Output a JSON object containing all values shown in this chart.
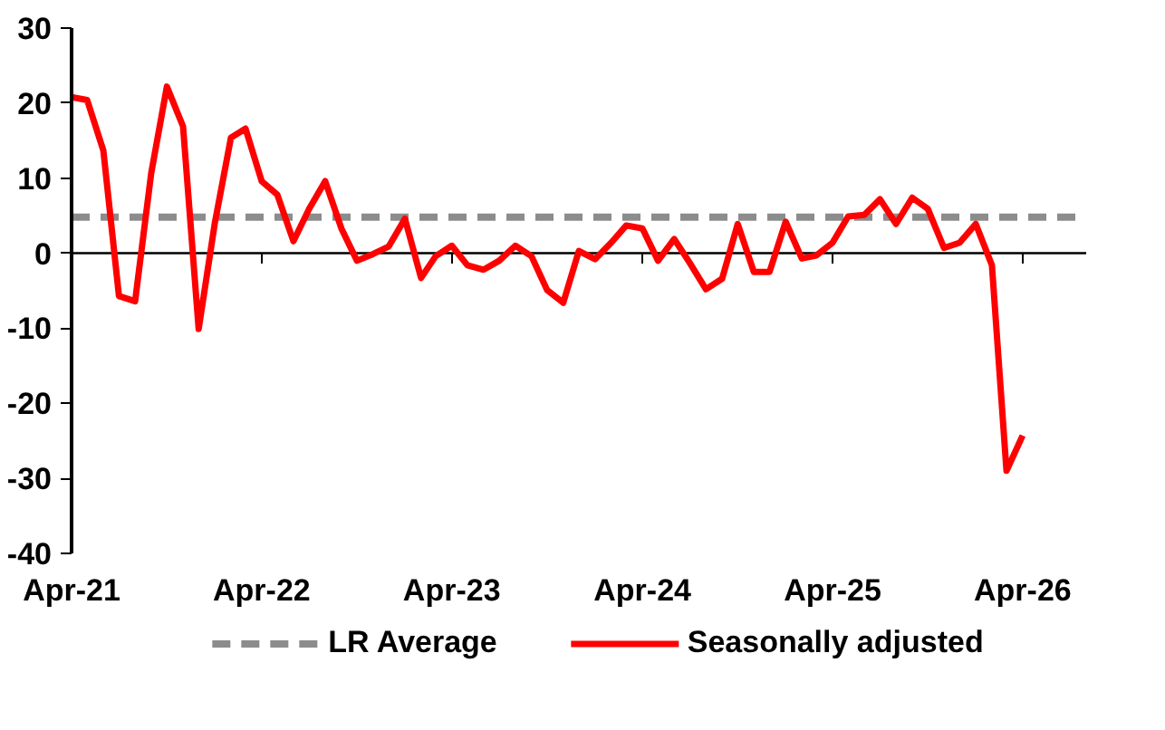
{
  "chart_data": {
    "type": "line",
    "x": [
      "2021-04",
      "2021-05",
      "2021-06",
      "2021-07",
      "2021-08",
      "2021-09",
      "2021-10",
      "2021-11",
      "2021-12",
      "2022-01",
      "2022-02",
      "2022-03",
      "2022-04",
      "2022-05",
      "2022-06",
      "2022-07",
      "2022-08",
      "2022-09",
      "2022-10",
      "2022-11",
      "2022-12",
      "2023-01",
      "2023-02",
      "2023-03",
      "2023-04",
      "2023-05",
      "2023-06",
      "2023-07",
      "2023-08",
      "2023-09",
      "2023-10",
      "2023-11",
      "2023-12",
      "2024-01",
      "2024-02",
      "2024-03",
      "2024-04",
      "2024-05",
      "2024-06",
      "2024-07",
      "2024-08",
      "2024-09",
      "2024-10",
      "2024-11",
      "2024-12",
      "2025-01",
      "2025-02",
      "2025-03",
      "2025-04",
      "2025-05",
      "2025-06",
      "2025-07",
      "2025-08",
      "2025-09",
      "2025-10",
      "2025-11",
      "2025-12",
      "2026-01",
      "2026-02",
      "2026-03",
      "2026-04"
    ],
    "series": [
      {
        "name": "Seasonally adjusted",
        "color": "#ff0000",
        "values": [
          20.8,
          20.4,
          13.7,
          -5.7,
          -6.4,
          10.7,
          22.2,
          16.9,
          -10.1,
          4,
          15.4,
          16.6,
          9.6,
          7.8,
          1.6,
          5.9,
          9.6,
          3.3,
          -1.0,
          -0.1,
          0.9,
          4.6,
          -3.3,
          -0.4,
          1.0,
          -1.6,
          -2.2,
          -1.0,
          1.0,
          -0.4,
          -4.9,
          -6.6,
          0.3,
          -0.8,
          1.4,
          3.7,
          3.3,
          -1.0,
          1.9,
          -1.3,
          -4.8,
          -3.4,
          3.9,
          -2.5,
          -2.5,
          4.2,
          -0.7,
          -0.3,
          1.4,
          4.9,
          5.1,
          7.2,
          3.9,
          7.4,
          5.9,
          0.7,
          1.4,
          3.9,
          -1.6,
          -29.0,
          -24.3
        ]
      }
    ],
    "ref_lines": [
      {
        "axis": "y",
        "value": 4.8,
        "label": "LR Average",
        "color": "#8c8c8c",
        "line_style": "dashed"
      },
      {
        "axis": "y",
        "value": 0,
        "color": "#000000",
        "line_style": "solid"
      }
    ],
    "xlim": [
      "2021-04",
      "2026-08"
    ],
    "xticks": [
      {
        "value": "2021-04",
        "label": "Apr-21"
      },
      {
        "value": "2022-04",
        "label": "Apr-22"
      },
      {
        "value": "2023-04",
        "label": "Apr-23"
      },
      {
        "value": "2024-04",
        "label": "Apr-24"
      },
      {
        "value": "2025-04",
        "label": "Apr-25"
      },
      {
        "value": "2026-04",
        "label": "Apr-26"
      }
    ],
    "ylim": [
      -40,
      30
    ],
    "yticks": [
      -40,
      -30,
      -20,
      -10,
      0,
      10,
      20,
      30
    ],
    "grid": false,
    "legend": "bottom",
    "line_style": "solid",
    "marker": "none"
  }
}
